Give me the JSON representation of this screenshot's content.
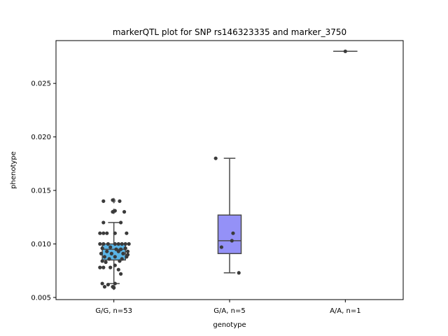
{
  "chart_data": {
    "type": "boxplot",
    "title": "markerQTL plot for SNP rs146323335 and marker_3750",
    "xlabel": "genotype",
    "ylabel": "phenotype",
    "ylim": [
      0.0048,
      0.029
    ],
    "yticks": [
      0.005,
      0.01,
      0.015,
      0.02,
      0.025
    ],
    "ytick_labels": [
      "0.005",
      "0.010",
      "0.015",
      "0.020",
      "0.025"
    ],
    "grid": false,
    "categories": [
      "G/G, n=53",
      "G/A, n=5",
      "A/A, n=1"
    ],
    "boxes": [
      {
        "category": "G/G, n=53",
        "color": "#5ab4e6",
        "q1": 0.0085,
        "median": 0.0095,
        "q3": 0.01,
        "whisker_low": 0.0063,
        "whisker_high": 0.012,
        "fliers": [
          0.014,
          0.0141,
          0.014,
          0.013,
          0.0131,
          0.006,
          0.0059
        ]
      },
      {
        "category": "G/A, n=5",
        "color": "#9491f7",
        "q1": 0.0091,
        "median": 0.0103,
        "q3": 0.0127,
        "whisker_low": 0.0073,
        "whisker_high": 0.018,
        "fliers": []
      },
      {
        "category": "A/A, n=1",
        "color": "#b090f0",
        "q1": 0.028,
        "median": 0.028,
        "q3": 0.028,
        "whisker_low": 0.028,
        "whisker_high": 0.028,
        "fliers": []
      }
    ],
    "points": [
      [
        {
          "dx": -0.09,
          "y": 0.014
        },
        {
          "dx": -0.01,
          "y": 0.0141
        },
        {
          "dx": 0.05,
          "y": 0.014
        },
        {
          "dx": -0.01,
          "y": 0.013
        },
        {
          "dx": 0.01,
          "y": 0.0131
        },
        {
          "dx": 0.09,
          "y": 0.013
        },
        {
          "dx": -0.09,
          "y": 0.012
        },
        {
          "dx": 0.06,
          "y": 0.012
        },
        {
          "dx": -0.12,
          "y": 0.011
        },
        {
          "dx": -0.09,
          "y": 0.011
        },
        {
          "dx": -0.06,
          "y": 0.011
        },
        {
          "dx": 0.01,
          "y": 0.011
        },
        {
          "dx": 0.11,
          "y": 0.011
        },
        {
          "dx": -0.12,
          "y": 0.01
        },
        {
          "dx": -0.09,
          "y": 0.01
        },
        {
          "dx": -0.05,
          "y": 0.01
        },
        {
          "dx": 0.01,
          "y": 0.01
        },
        {
          "dx": 0.04,
          "y": 0.01
        },
        {
          "dx": 0.07,
          "y": 0.01
        },
        {
          "dx": 0.1,
          "y": 0.01
        },
        {
          "dx": 0.13,
          "y": 0.01
        },
        {
          "dx": -0.1,
          "y": 0.0096
        },
        {
          "dx": -0.03,
          "y": 0.0097
        },
        {
          "dx": 0.02,
          "y": 0.0095
        },
        {
          "dx": 0.06,
          "y": 0.0095
        },
        {
          "dx": 0.1,
          "y": 0.0096
        },
        {
          "dx": -0.06,
          "y": 0.0093
        },
        {
          "dx": 0.04,
          "y": 0.0093
        },
        {
          "dx": 0.12,
          "y": 0.0093
        },
        {
          "dx": -0.11,
          "y": 0.0091
        },
        {
          "dx": -0.02,
          "y": 0.0091
        },
        {
          "dx": 0.08,
          "y": 0.0091
        },
        {
          "dx": -0.08,
          "y": 0.0088
        },
        {
          "dx": 0.01,
          "y": 0.0088
        },
        {
          "dx": 0.11,
          "y": 0.0088
        },
        {
          "dx": -0.04,
          "y": 0.0086
        },
        {
          "dx": 0.07,
          "y": 0.0086
        },
        {
          "dx": -0.1,
          "y": 0.0084
        },
        {
          "dx": -0.07,
          "y": 0.0083
        },
        {
          "dx": 0.05,
          "y": 0.0084
        },
        {
          "dx": -0.12,
          "y": 0.0078
        },
        {
          "dx": -0.09,
          "y": 0.0078
        },
        {
          "dx": -0.03,
          "y": 0.0078
        },
        {
          "dx": 0.01,
          "y": 0.008
        },
        {
          "dx": 0.04,
          "y": 0.0076
        },
        {
          "dx": 0.06,
          "y": 0.0072
        },
        {
          "dx": -0.1,
          "y": 0.0063
        },
        {
          "dx": -0.05,
          "y": 0.0062
        },
        {
          "dx": 0.01,
          "y": 0.0063
        },
        {
          "dx": -0.08,
          "y": 0.006
        },
        {
          "dx": -0.01,
          "y": 0.006
        },
        {
          "dx": 0.0,
          "y": 0.0059
        },
        {
          "dx": 0.12,
          "y": 0.009
        }
      ],
      [
        {
          "dx": -0.12,
          "y": 0.018
        },
        {
          "dx": 0.03,
          "y": 0.011
        },
        {
          "dx": -0.07,
          "y": 0.0097
        },
        {
          "dx": 0.08,
          "y": 0.0073
        },
        {
          "dx": 0.02,
          "y": 0.0103
        }
      ],
      [
        {
          "dx": 0.0,
          "y": 0.028
        }
      ]
    ],
    "point_color": "#3a3a3a",
    "line_color": "#4a4a4a"
  }
}
